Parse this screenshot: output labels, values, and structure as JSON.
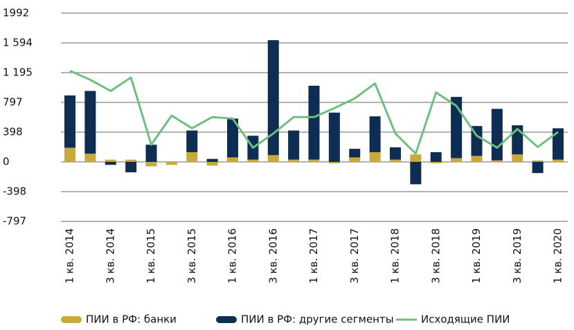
{
  "chart_data": {
    "type": "bar-line",
    "categories": [
      "1 кв. 2014",
      null,
      "3 кв. 2014",
      null,
      "1 кв. 2015",
      null,
      "3 кв. 2015",
      null,
      "1 кв. 2016",
      null,
      "3 кв. 2016",
      null,
      "1 кв. 2017",
      null,
      "3 кв. 2017",
      null,
      "1 кв. 2018",
      null,
      "3 кв. 2018",
      null,
      "1 кв. 2019",
      null,
      "3 кв. 2019",
      null,
      "1 кв. 2020"
    ],
    "series": [
      {
        "name": "ПИИ в РФ: банки",
        "color": "#c9a93a",
        "kind": "bar",
        "values": [
          190,
          110,
          30,
          30,
          -60,
          -40,
          130,
          -50,
          60,
          30,
          90,
          30,
          30,
          -20,
          60,
          130,
          30,
          100,
          -20,
          50,
          80,
          20,
          100,
          20,
          30
        ]
      },
      {
        "name": "ПИИ в РФ: другие сегменты",
        "color": "#0d2d52",
        "kind": "bar",
        "values": [
          700,
          840,
          -40,
          -140,
          230,
          0,
          290,
          40,
          520,
          320,
          1540,
          390,
          990,
          660,
          115,
          480,
          165,
          -300,
          130,
          820,
          400,
          690,
          390,
          -150,
          420
        ]
      },
      {
        "name": "Исходящие ПИИ",
        "color": "#6dbf7e",
        "kind": "line",
        "values": [
          1220,
          1100,
          950,
          1130,
          230,
          620,
          450,
          600,
          580,
          190,
          380,
          600,
          600,
          720,
          850,
          1050,
          380,
          110,
          930,
          750,
          350,
          190,
          440,
          200,
          400
        ]
      }
    ],
    "ylim": [
      -797,
      1992
    ],
    "yticks": [
      -797,
      -398,
      0,
      398,
      {
        "value": 797,
        "label": "797"
      },
      {
        "value": 1195,
        "label": "1 195"
      },
      {
        "value": 1594,
        "label": "1 594"
      },
      1992
    ],
    "grid": true,
    "stacked": true,
    "legend": "bottom"
  }
}
